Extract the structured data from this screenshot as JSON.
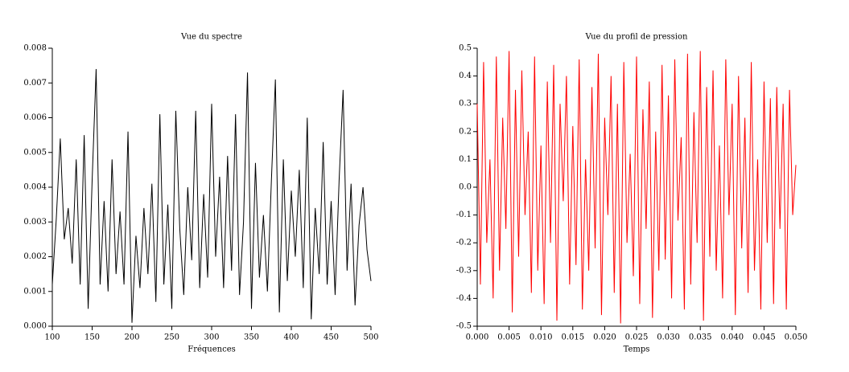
{
  "chart_data": [
    {
      "type": "line",
      "title": "Vue du spectre",
      "x_label": "Fréquences",
      "x": [
        100,
        105,
        110,
        115,
        120,
        125,
        130,
        135,
        140,
        145,
        150,
        155,
        160,
        165,
        170,
        175,
        180,
        185,
        190,
        195,
        200,
        205,
        210,
        215,
        220,
        225,
        230,
        235,
        240,
        245,
        250,
        255,
        260,
        265,
        270,
        275,
        280,
        285,
        290,
        295,
        300,
        305,
        310,
        315,
        320,
        325,
        330,
        335,
        340,
        345,
        350,
        355,
        360,
        365,
        370,
        375,
        380,
        385,
        390,
        395,
        400,
        405,
        410,
        415,
        420,
        425,
        430,
        435,
        440,
        445,
        450,
        455,
        460,
        465,
        470,
        475,
        480,
        485,
        490,
        495,
        500
      ],
      "series": [
        {
          "color": "#000000",
          "values": [
            0.0012,
            0.0031,
            0.0054,
            0.0025,
            0.0034,
            0.0018,
            0.0048,
            0.0012,
            0.0055,
            0.0005,
            0.0042,
            0.0074,
            0.0012,
            0.0036,
            0.001,
            0.0048,
            0.0015,
            0.0033,
            0.0012,
            0.0056,
            0.0001,
            0.0026,
            0.0011,
            0.0034,
            0.0015,
            0.0041,
            0.0007,
            0.0061,
            0.0012,
            0.0035,
            0.0005,
            0.0062,
            0.0028,
            0.0009,
            0.004,
            0.0019,
            0.0062,
            0.0011,
            0.0038,
            0.0014,
            0.0064,
            0.002,
            0.0043,
            0.0011,
            0.0049,
            0.0016,
            0.0061,
            0.0009,
            0.003,
            0.0073,
            0.0005,
            0.0047,
            0.0014,
            0.0032,
            0.001,
            0.0042,
            0.0071,
            0.0004,
            0.0048,
            0.0013,
            0.0039,
            0.002,
            0.0045,
            0.0011,
            0.006,
            0.0002,
            0.0034,
            0.0015,
            0.0053,
            0.0012,
            0.0036,
            0.0009,
            0.0042,
            0.0068,
            0.0016,
            0.0041,
            0.0006,
            0.0029,
            0.004,
            0.0022,
            0.0013
          ]
        }
      ],
      "xlim": [
        100,
        500
      ],
      "xticks": [
        100,
        150,
        200,
        250,
        300,
        350,
        400,
        450,
        500
      ],
      "ylim": [
        0,
        0.008
      ],
      "yticks": [
        {
          "value": 0,
          "label": "0.000"
        },
        {
          "value": 0.001,
          "label": "0.001"
        },
        {
          "value": 0.002,
          "label": "0.002"
        },
        {
          "value": 0.003,
          "label": "0.003"
        },
        {
          "value": 0.004,
          "label": "0.004"
        },
        {
          "value": 0.005,
          "label": "0.005"
        },
        {
          "value": 0.006,
          "label": "0.006"
        },
        {
          "value": 0.007,
          "label": "0.007"
        },
        {
          "value": 0.008,
          "label": "0.008"
        }
      ]
    },
    {
      "type": "line",
      "title": "Vue du profil de pression",
      "x_label": "Temps",
      "x": [
        0,
        0.0005,
        0.001,
        0.0015,
        0.002,
        0.0025,
        0.003,
        0.0035,
        0.004,
        0.0045,
        0.005,
        0.0055,
        0.006,
        0.0065,
        0.007,
        0.0075,
        0.008,
        0.0085,
        0.009,
        0.0095,
        0.01,
        0.0105,
        0.011,
        0.0115,
        0.012,
        0.0125,
        0.013,
        0.0135,
        0.014,
        0.0145,
        0.015,
        0.0155,
        0.016,
        0.0165,
        0.017,
        0.0175,
        0.018,
        0.0185,
        0.019,
        0.0195,
        0.02,
        0.0205,
        0.021,
        0.0215,
        0.022,
        0.0225,
        0.023,
        0.0235,
        0.024,
        0.0245,
        0.025,
        0.0255,
        0.026,
        0.0265,
        0.027,
        0.0275,
        0.028,
        0.0285,
        0.029,
        0.0295,
        0.03,
        0.0305,
        0.031,
        0.0315,
        0.032,
        0.0325,
        0.033,
        0.0335,
        0.034,
        0.0345,
        0.035,
        0.0355,
        0.036,
        0.0365,
        0.037,
        0.0375,
        0.038,
        0.0385,
        0.039,
        0.0395,
        0.04,
        0.0405,
        0.041,
        0.0415,
        0.042,
        0.0425,
        0.043,
        0.0435,
        0.044,
        0.0445,
        0.045,
        0.0455,
        0.046,
        0.0465,
        0.047,
        0.0475,
        0.048,
        0.0485,
        0.049,
        0.0495,
        0.05
      ],
      "series": [
        {
          "color": "#ff0000",
          "values": [
            0.3,
            -0.35,
            0.45,
            -0.2,
            0.1,
            -0.4,
            0.47,
            -0.3,
            0.25,
            -0.15,
            0.49,
            -0.45,
            0.35,
            -0.25,
            0.42,
            -0.1,
            0.2,
            -0.38,
            0.47,
            -0.3,
            0.15,
            -0.42,
            0.38,
            -0.2,
            0.44,
            -0.48,
            0.3,
            -0.05,
            0.4,
            -0.35,
            0.22,
            -0.28,
            0.46,
            -0.44,
            0.1,
            -0.3,
            0.36,
            -0.22,
            0.48,
            -0.46,
            0.25,
            -0.1,
            0.4,
            -0.38,
            0.3,
            -0.49,
            0.45,
            -0.2,
            0.12,
            -0.32,
            0.47,
            -0.42,
            0.28,
            -0.15,
            0.38,
            -0.47,
            0.2,
            -0.3,
            0.44,
            -0.26,
            0.33,
            -0.4,
            0.46,
            -0.12,
            0.18,
            -0.44,
            0.48,
            -0.35,
            0.27,
            -0.2,
            0.49,
            -0.48,
            0.36,
            -0.25,
            0.42,
            -0.3,
            0.15,
            -0.4,
            0.46,
            -0.1,
            0.3,
            -0.46,
            0.4,
            -0.22,
            0.25,
            -0.38,
            0.45,
            -0.3,
            0.1,
            -0.44,
            0.38,
            -0.2,
            0.32,
            -0.42,
            0.36,
            -0.15,
            0.3,
            -0.44,
            0.35,
            -0.1,
            0.08
          ]
        }
      ],
      "xlim": [
        0,
        0.05
      ],
      "xticks": [
        {
          "value": 0,
          "label": "0.000"
        },
        {
          "value": 0.005,
          "label": "0.005"
        },
        {
          "value": 0.01,
          "label": "0.010"
        },
        {
          "value": 0.015,
          "label": "0.015"
        },
        {
          "value": 0.02,
          "label": "0.020"
        },
        {
          "value": 0.025,
          "label": "0.025"
        },
        {
          "value": 0.03,
          "label": "0.030"
        },
        {
          "value": 0.035,
          "label": "0.035"
        },
        {
          "value": 0.04,
          "label": "0.040"
        },
        {
          "value": 0.045,
          "label": "0.045"
        },
        {
          "value": 0.05,
          "label": "0.050"
        }
      ],
      "ylim": [
        -0.5,
        0.5
      ],
      "yticks": [
        -0.5,
        -0.4,
        -0.3,
        -0.2,
        -0.1,
        {
          "value": 0,
          "label": "0.0"
        },
        0.1,
        0.2,
        0.3,
        0.4,
        0.5
      ]
    }
  ]
}
